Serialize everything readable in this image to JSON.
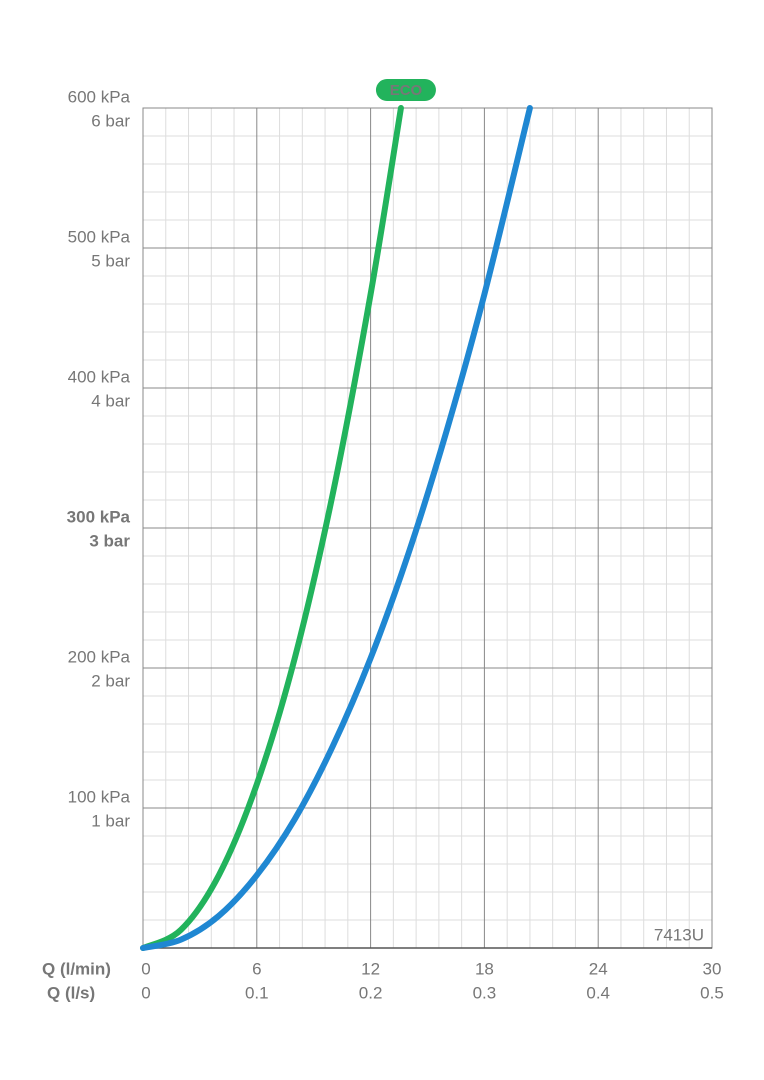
{
  "chart_data": {
    "type": "line",
    "badge": "ECO",
    "model": "7413U",
    "xlabel": "Q (l/min)",
    "x2label": "Q (l/s)",
    "xlim": [
      0,
      30
    ],
    "xticks": [
      0,
      6,
      12,
      18,
      24,
      30
    ],
    "x2lim": [
      0,
      0.5
    ],
    "x2ticks": [
      0,
      0.1,
      0.2,
      0.3,
      0.4,
      0.5
    ],
    "ylim": [
      0,
      600
    ],
    "yticks": [
      {
        "value": 100,
        "label": "100 kPa"
      },
      {
        "value": 200,
        "label": "200 kPa"
      },
      {
        "value": 300,
        "label": "300 kPa"
      },
      {
        "value": 400,
        "label": "400 kPa"
      },
      {
        "value": 500,
        "label": "500 kPa"
      },
      {
        "value": 600,
        "label": "600 kPa"
      }
    ],
    "ytick_bar_labels": [
      "1 bar",
      "2 bar",
      "3 bar",
      "4 bar",
      "5 bar",
      "6 bar"
    ],
    "bold_ytick": 300,
    "grid": true,
    "minor_divisions": 5,
    "series": [
      {
        "color": "#22b35c",
        "x": [
          0,
          2,
          4,
          6,
          8,
          10,
          12,
          13.6
        ],
        "values": [
          0,
          13,
          52,
          117,
          207,
          324,
          467,
          600
        ]
      },
      {
        "color": "#1f87d2",
        "x": [
          0,
          2,
          4,
          6,
          8,
          10,
          12,
          14,
          16,
          18,
          20.4
        ],
        "values": [
          0,
          6,
          23,
          52,
          92,
          144,
          207,
          282,
          369,
          467,
          600
        ]
      }
    ]
  }
}
